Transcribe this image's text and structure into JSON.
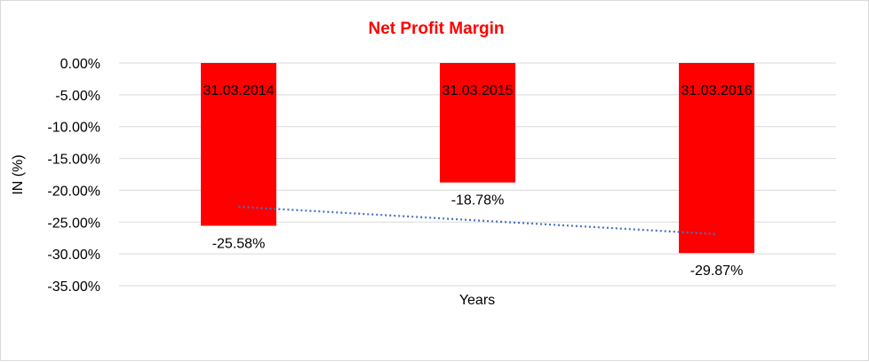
{
  "chart_data": {
    "type": "bar",
    "title": "Net Profit Margin",
    "xlabel": "Years",
    "ylabel": "IN (%)",
    "categories": [
      "31.03.2014",
      "31.03.2015",
      "31.03.2016"
    ],
    "values": [
      -25.58,
      -18.78,
      -29.87
    ],
    "data_labels": [
      "-25.58%",
      "-18.78%",
      "-29.87%"
    ],
    "ylim": [
      -35,
      0
    ],
    "yticks": [
      0,
      -5,
      -10,
      -15,
      -20,
      -25,
      -30,
      -35
    ],
    "ytick_labels": [
      "0.00%",
      "-5.00%",
      "-10.00%",
      "-15.00%",
      "-20.00%",
      "-25.00%",
      "-30.00%",
      "-35.00%"
    ],
    "grid": true,
    "trendline": {
      "type": "linear",
      "style": "dotted"
    },
    "colors": {
      "bar": "#ff0000",
      "title": "#ff0000",
      "trendline": "#4472c4",
      "grid": "#d9d9d9"
    }
  }
}
